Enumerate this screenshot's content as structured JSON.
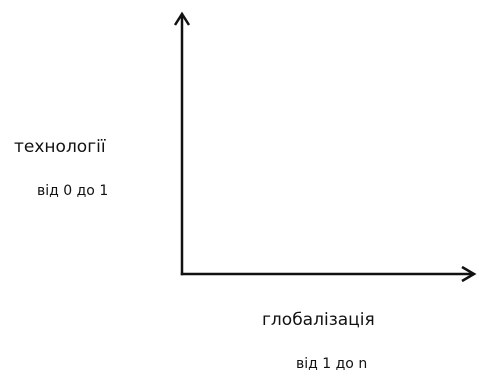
{
  "diagram": {
    "y_axis": {
      "title": "технології",
      "range": "від 0 до 1"
    },
    "x_axis": {
      "title": "глобалізація",
      "range": "від 1 до n"
    },
    "colors": {
      "axis": "#111111",
      "text": "#111111",
      "background": "#ffffff"
    }
  }
}
